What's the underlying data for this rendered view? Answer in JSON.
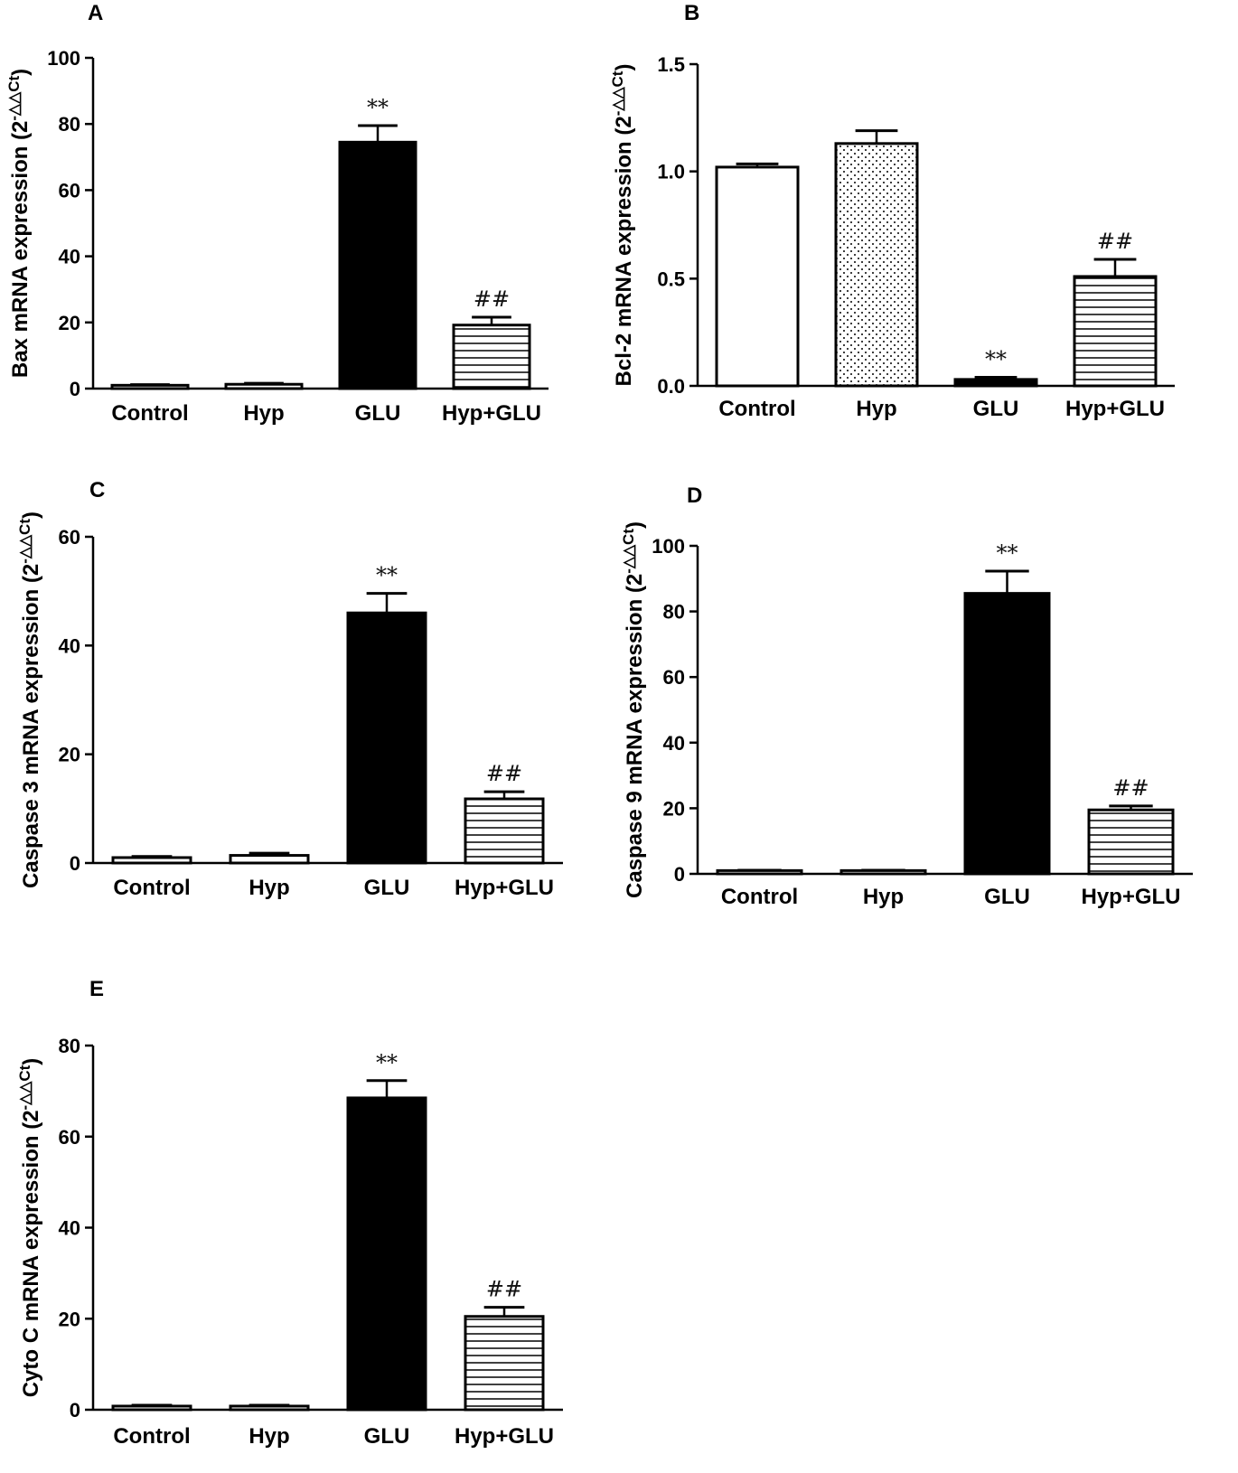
{
  "chart_data": [
    {
      "panel": "A",
      "type": "bar",
      "ylabel": "Bax mRNA expression (2",
      "ylabel_sup": "-△△Ct",
      "ylabel_close": ")",
      "ylim": [
        0,
        100
      ],
      "yticks": [
        "0",
        "20",
        "40",
        "60",
        "80",
        "100"
      ],
      "ytick_values": [
        0,
        20,
        40,
        60,
        80,
        100
      ],
      "categories": [
        "Control",
        "Hyp",
        "GLU",
        "Hyp+GLU"
      ],
      "values": [
        1.0,
        1.3,
        74.5,
        19.2
      ],
      "errors": [
        0.2,
        0.3,
        5.0,
        2.4
      ],
      "fills": [
        "white",
        "white",
        "black",
        "hlines"
      ],
      "sig_labels": [
        "",
        "",
        "**",
        "##"
      ]
    },
    {
      "panel": "B",
      "type": "bar",
      "ylabel": "Bcl-2 mRNA expression (2",
      "ylabel_sup": "-△△Ct",
      "ylabel_close": ")",
      "ylim": [
        0,
        1.5
      ],
      "yticks": [
        "0.0",
        "0.5",
        "1.0",
        "1.5"
      ],
      "ytick_values": [
        0,
        0.5,
        1.0,
        1.5
      ],
      "categories": [
        "Control",
        "Hyp",
        "GLU",
        "Hyp+GLU"
      ],
      "values": [
        1.02,
        1.13,
        0.03,
        0.51
      ],
      "errors": [
        0.015,
        0.06,
        0.01,
        0.08
      ],
      "fills": [
        "white",
        "dots",
        "black",
        "hlines"
      ],
      "sig_labels": [
        "",
        "",
        "**",
        "##"
      ]
    },
    {
      "panel": "C",
      "type": "bar",
      "ylabel": "Caspase 3 mRNA expression (2",
      "ylabel_sup": "-△△Ct",
      "ylabel_close": ")",
      "ylim": [
        0,
        60
      ],
      "yticks": [
        "0",
        "20",
        "40",
        "60"
      ],
      "ytick_values": [
        0,
        20,
        40,
        60
      ],
      "categories": [
        "Control",
        "Hyp",
        "GLU",
        "Hyp+GLU"
      ],
      "values": [
        1.0,
        1.4,
        46.0,
        11.8
      ],
      "errors": [
        0.2,
        0.4,
        3.6,
        1.3
      ],
      "fills": [
        "white",
        "white",
        "black",
        "hlines"
      ],
      "sig_labels": [
        "",
        "",
        "**",
        "##"
      ]
    },
    {
      "panel": "D",
      "type": "bar",
      "ylabel": "Caspase 9 mRNA expression (2",
      "ylabel_sup": "-△△Ct",
      "ylabel_close": ")",
      "ylim": [
        0,
        100
      ],
      "yticks": [
        "0",
        "20",
        "40",
        "60",
        "80",
        "100"
      ],
      "ytick_values": [
        0,
        20,
        40,
        60,
        80,
        100
      ],
      "categories": [
        "Control",
        "Hyp",
        "GLU",
        "Hyp+GLU"
      ],
      "values": [
        1.0,
        1.0,
        85.5,
        19.5
      ],
      "errors": [
        0.1,
        0.1,
        6.8,
        1.2
      ],
      "fills": [
        "white",
        "white",
        "black",
        "hlines"
      ],
      "sig_labels": [
        "",
        "",
        "**",
        "##"
      ]
    },
    {
      "panel": "E",
      "type": "bar",
      "ylabel": "Cyto C mRNA expression (2",
      "ylabel_sup": "-△△Ct",
      "ylabel_close": ")",
      "ylim": [
        0,
        80
      ],
      "yticks": [
        "0",
        "20",
        "40",
        "60",
        "80"
      ],
      "ytick_values": [
        0,
        20,
        40,
        60,
        80
      ],
      "categories": [
        "Control",
        "Hyp",
        "GLU",
        "Hyp+GLU"
      ],
      "values": [
        0.8,
        0.8,
        68.5,
        20.5
      ],
      "errors": [
        0.2,
        0.2,
        3.8,
        2.0
      ],
      "fills": [
        "white",
        "white",
        "black",
        "hlines"
      ],
      "sig_labels": [
        "",
        "",
        "**",
        "##"
      ]
    }
  ]
}
